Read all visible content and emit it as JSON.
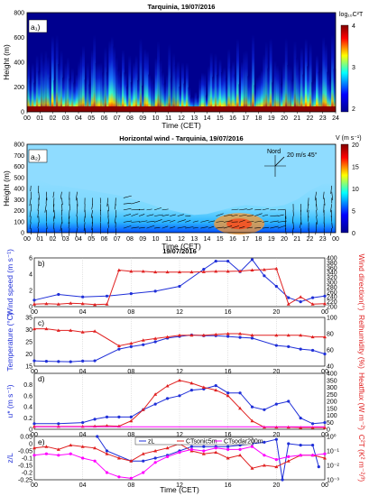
{
  "chart_data": [
    {
      "type": "heatmap",
      "title": "Tarquinia, 19/07/2016",
      "panel_label": "a₁)",
      "xlabel": "Time (CET)",
      "ylabel": "Height (m)",
      "x_ticks": [
        "00",
        "01",
        "02",
        "03",
        "04",
        "05",
        "06",
        "07",
        "08",
        "09",
        "10",
        "11",
        "12",
        "13",
        "14",
        "15",
        "16",
        "17",
        "18",
        "19",
        "20",
        "21",
        "22",
        "23",
        "24"
      ],
      "y_ticks": [
        "0",
        "200",
        "400",
        "600",
        "800"
      ],
      "ylim": [
        0,
        800
      ],
      "colorbar": {
        "label": "log₁₀C²T",
        "ticks": [
          "4",
          "3",
          "2"
        ],
        "range": [
          2,
          4
        ],
        "colors": [
          "#00008f",
          "#0000ff",
          "#00ffff",
          "#ffff00",
          "#ff0000",
          "#800000"
        ]
      }
    },
    {
      "type": "heatmap",
      "title": "Horizontal wind - Tarquinia, 19/07/2016",
      "panel_label": "a₂)",
      "xlabel": "Time (CET)",
      "ylabel": "Height (m)",
      "x_ticks": [
        "00",
        "01",
        "02",
        "03",
        "04",
        "05",
        "06",
        "07",
        "08",
        "09",
        "10",
        "11",
        "12",
        "13",
        "14",
        "15",
        "16",
        "17",
        "18",
        "19",
        "20",
        "21",
        "22",
        "23",
        "00"
      ],
      "y_ticks": [
        "0",
        "100",
        "200",
        "300",
        "400",
        "500",
        "600",
        "700",
        "800"
      ],
      "ylim": [
        0,
        800
      ],
      "legend_text": {
        "north": "Nord",
        "ref": "20 m/s 45°"
      },
      "colorbar": {
        "label": "V (m s⁻¹)",
        "ticks": [
          "20",
          "15",
          "10",
          "5",
          "0"
        ],
        "range": [
          0,
          20
        ],
        "colors": [
          "#00008f",
          "#0000ff",
          "#00ffff",
          "#ffff00",
          "#ff0000",
          "#800000"
        ]
      }
    },
    {
      "type": "line",
      "super_title": "19/07/2016",
      "panel_label": "b)",
      "ylabel_left": "Wind speed (m s⁻¹)",
      "ylabel_right": "Wind direction(°)",
      "ylim_left": [
        0,
        6
      ],
      "yticks_left": [
        0,
        2,
        4,
        6
      ],
      "ylim_right": [
        200,
        400
      ],
      "yticks_right": [
        200,
        220,
        240,
        260,
        280,
        300,
        320,
        340,
        360,
        380,
        400
      ],
      "series": [
        {
          "axis": "left",
          "color": "#1f2fd8",
          "marker": "o",
          "x": [
            0,
            2,
            4,
            6,
            8,
            10,
            12,
            14,
            15,
            16,
            17,
            18,
            19,
            20,
            21,
            22,
            23,
            24
          ],
          "y": [
            0.8,
            1.5,
            1.2,
            1.3,
            1.6,
            1.9,
            2.5,
            4.6,
            5.6,
            5.6,
            4.3,
            5.8,
            3.8,
            2.5,
            1.1,
            0.6,
            1.1,
            1.3
          ]
        },
        {
          "axis": "right",
          "color": "#e02020",
          "marker": "^",
          "x": [
            0,
            1,
            2,
            3,
            4,
            5,
            6,
            7,
            8,
            9,
            10,
            11,
            12,
            13,
            14,
            15,
            16,
            17,
            18,
            19,
            20,
            21,
            22,
            23,
            24
          ],
          "y": [
            210,
            212,
            210,
            214,
            212,
            208,
            210,
            350,
            345,
            345,
            342,
            342,
            342,
            342,
            343,
            345,
            345,
            346,
            350,
            352,
            356,
            210,
            240,
            210,
            212
          ]
        }
      ]
    },
    {
      "type": "line",
      "panel_label": "c)",
      "ylabel_left": "Temperature (°C)",
      "ylabel_right": "Relhumidity (%)",
      "ylim_left": [
        15,
        35
      ],
      "yticks_left": [
        15,
        20,
        25,
        30,
        35
      ],
      "ylim_right": [
        40,
        100
      ],
      "yticks_right": [
        40,
        60,
        80,
        100
      ],
      "series": [
        {
          "axis": "left",
          "color": "#1f2fd8",
          "marker": "o",
          "x": [
            0,
            1,
            2,
            3,
            4,
            5,
            7,
            8,
            9,
            10,
            11,
            12,
            13,
            14,
            15,
            16,
            17,
            18,
            20,
            21,
            22,
            23,
            24
          ],
          "y": [
            17.2,
            17.0,
            16.9,
            16.8,
            17.1,
            17.2,
            22.0,
            23.0,
            23.8,
            25.0,
            26.5,
            27.2,
            27.8,
            27.5,
            27.5,
            27.2,
            26.8,
            26.5,
            23.5,
            23.0,
            22.0,
            21.5,
            20.0
          ]
        },
        {
          "axis": "right",
          "color": "#e02020",
          "marker": "^",
          "x": [
            0,
            1,
            2,
            3,
            4,
            5,
            7,
            8,
            9,
            10,
            11,
            12,
            13,
            14,
            15,
            16,
            17,
            18,
            20,
            21,
            22,
            23,
            24
          ],
          "y": [
            86,
            86,
            84,
            84,
            82,
            83,
            65,
            68,
            72,
            74,
            76,
            78,
            78,
            78,
            79,
            80,
            80,
            78,
            78,
            78,
            78,
            76,
            76
          ]
        }
      ]
    },
    {
      "type": "line",
      "panel_label": "d)",
      "ylabel_left": "u* (m s⁻¹)",
      "ylabel_right": "Heatflux (W m⁻²)",
      "ylim_left": [
        0,
        1
      ],
      "yticks_left": [
        0,
        0.2,
        0.4,
        0.6,
        0.8
      ],
      "ylim_right": [
        0,
        400
      ],
      "yticks_right": [
        0,
        50,
        100,
        150,
        200,
        250,
        300,
        350,
        400
      ],
      "series": [
        {
          "axis": "left",
          "color": "#1f2fd8",
          "marker": "o",
          "x": [
            0,
            2,
            4,
            5,
            6,
            7,
            8,
            9,
            10,
            11,
            12,
            13,
            14,
            15,
            16,
            17,
            18,
            19,
            20,
            21,
            22,
            23,
            24
          ],
          "y": [
            0.1,
            0.1,
            0.12,
            0.18,
            0.22,
            0.22,
            0.22,
            0.35,
            0.45,
            0.55,
            0.6,
            0.7,
            0.72,
            0.78,
            0.65,
            0.65,
            0.4,
            0.35,
            0.45,
            0.5,
            0.2,
            0.1,
            0.12
          ]
        },
        {
          "axis": "right",
          "color": "#e02020",
          "marker": "^",
          "x": [
            0,
            2,
            4,
            5,
            6,
            7,
            8,
            9,
            10,
            11,
            12,
            13,
            14,
            15,
            16,
            17,
            18,
            19,
            20,
            21,
            22,
            23,
            24
          ],
          "y": [
            20,
            20,
            20,
            22,
            25,
            22,
            60,
            140,
            250,
            310,
            350,
            330,
            300,
            280,
            240,
            150,
            60,
            15,
            15,
            15,
            12,
            12,
            12
          ]
        },
        {
          "axis": "right",
          "color": "#ff00ff",
          "marker": "none",
          "x": [
            0,
            24
          ],
          "y": [
            18,
            18
          ]
        }
      ]
    },
    {
      "type": "line",
      "panel_label": "e)",
      "xlabel": "Time (CET)",
      "ylabel_left": "z/L",
      "ylabel_right": "C²T (K² m⁻²/³)",
      "ylim_left": [
        -0.25,
        0.05
      ],
      "yticks_left": [
        -0.25,
        -0.2,
        -0.15,
        -0.1,
        -0.05,
        0,
        0.05
      ],
      "ylim_right": [
        -3,
        0
      ],
      "yticks_right": [
        "10⁻³",
        "10⁻²",
        "10⁻¹",
        "10⁰"
      ],
      "x_ticks": [
        "00",
        "04",
        "08",
        "12",
        "16",
        "20",
        "00"
      ],
      "legend": [
        "zL",
        "CTsonic5m",
        "CTsodar200m"
      ],
      "series": [
        {
          "name": "zL",
          "axis": "left",
          "color": "#1f2fd8",
          "marker": "o",
          "x": [
            5.2,
            6,
            8,
            9,
            10,
            11,
            12,
            13,
            14,
            15,
            16,
            17,
            18,
            19,
            20,
            20.5,
            21,
            22,
            23,
            23.5
          ],
          "y": [
            0.05,
            -0.05,
            -0.12,
            -0.12,
            -0.1,
            -0.08,
            -0.05,
            -0.02,
            -0.02,
            -0.02,
            -0.02,
            -0.01,
            0.0,
            0.01,
            0.03,
            -0.25,
            0.0,
            -0.01,
            -0.01,
            -0.16
          ]
        },
        {
          "name": "CTsonic5m",
          "axis": "right",
          "color": "#e02020",
          "marker": "^",
          "x": [
            0,
            1,
            2,
            3,
            4,
            5,
            6,
            7,
            8,
            9,
            10,
            11,
            12,
            13,
            14,
            15,
            16,
            17,
            18,
            19,
            20,
            21,
            22,
            23,
            24
          ],
          "y": [
            -0.8,
            -0.7,
            -0.9,
            -0.6,
            -0.7,
            -0.8,
            -1.2,
            -1.5,
            -1.7,
            -1.2,
            -1.0,
            -0.8,
            -0.5,
            -1.0,
            -1.2,
            -1.1,
            -1.5,
            -1.3,
            -2.2,
            -2.0,
            -2.1,
            -1.7,
            -1.3,
            -1.3,
            -1.5
          ]
        },
        {
          "name": "CTsodar200m",
          "axis": "right",
          "color": "#ff00ff",
          "marker": "o",
          "x": [
            0,
            1,
            2,
            3,
            4,
            5,
            6,
            7,
            8,
            9,
            10,
            11,
            12,
            13,
            14,
            15,
            16,
            17,
            18,
            19,
            20,
            21,
            22,
            23,
            24
          ],
          "y": [
            -1.3,
            -1.2,
            -1.3,
            -1.2,
            -1.5,
            -1.7,
            -2.5,
            -2.8,
            -2.9,
            -2.5,
            -1.8,
            -1.4,
            -1.1,
            -0.9,
            -1.0,
            -0.8,
            -0.9,
            -0.9,
            -0.7,
            -1.3,
            -1.6,
            -1.4,
            -1.3,
            -1.3,
            -1.2
          ]
        }
      ]
    }
  ]
}
